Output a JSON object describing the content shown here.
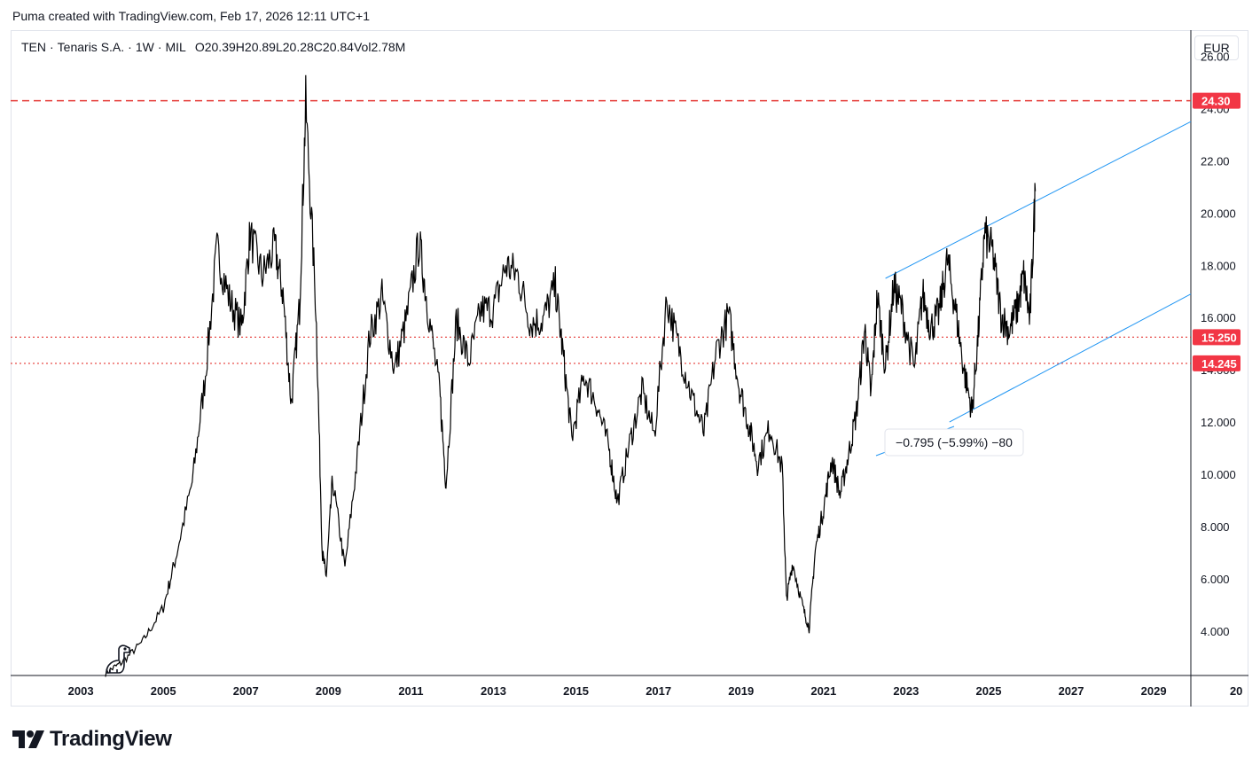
{
  "caption": "Puma created with TradingView.com, Feb 17, 2026 12:11 UTC+1",
  "symbol": {
    "ticker": "TEN",
    "name": "Tenaris S.A.",
    "interval": "1W",
    "exchange": "MIL",
    "open_label": "O",
    "open": "20.39",
    "high_label": "H",
    "high": "20.89",
    "low_label": "L",
    "low": "20.28",
    "close_label": "C",
    "close": "20.84",
    "vol_label": "Vol",
    "vol": "2.78M",
    "separator": "·"
  },
  "currency": "EUR",
  "logo_text": "TradingView",
  "colors": {
    "price_line": "#000000",
    "level_line": "#e53935",
    "trend_line": "#2196f3",
    "axis_text": "#131722",
    "label_bg": "#f23645"
  },
  "chart_data": {
    "type": "line",
    "title": "",
    "xlabel": "",
    "ylabel": "",
    "x_axis_ticks": [
      "2003",
      "2005",
      "2007",
      "2009",
      "2011",
      "2013",
      "2015",
      "2017",
      "2019",
      "2021",
      "2023",
      "2025",
      "2027",
      "2029",
      "20"
    ],
    "y_axis_ticks": [
      "26.00",
      "24.00",
      "22.00",
      "20.000",
      "18.000",
      "16.000",
      "14.000",
      "12.000",
      "10.000",
      "8.000",
      "6.000",
      "4.000"
    ],
    "ylim": [
      2.3,
      27.0
    ],
    "xlim": [
      2001.3,
      2029.9
    ],
    "series": [
      {
        "x": [
          2003.6,
          2004.0,
          2004.5,
          2005.0,
          2005.3,
          2005.7,
          2006.0,
          2006.3,
          2006.6,
          2006.9,
          2007.1,
          2007.4,
          2007.7,
          2007.9,
          2008.1,
          2008.3,
          2008.45,
          2008.7,
          2008.85,
          2008.95,
          2009.1,
          2009.4,
          2009.7,
          2010.0,
          2010.3,
          2010.6,
          2010.9,
          2011.2,
          2011.4,
          2011.7,
          2011.85,
          2012.1,
          2012.4,
          2012.7,
          2013.0,
          2013.3,
          2013.6,
          2013.9,
          2014.2,
          2014.5,
          2014.7,
          2014.9,
          2015.2,
          2015.5,
          2015.8,
          2016.0,
          2016.3,
          2016.6,
          2016.9,
          2017.2,
          2017.5,
          2017.8,
          2018.1,
          2018.4,
          2018.7,
          2018.95,
          2019.2,
          2019.4,
          2019.7,
          2020.0,
          2020.1,
          2020.25,
          2020.5,
          2020.65,
          2020.8,
          2021.0,
          2021.2,
          2021.4,
          2021.6,
          2021.8,
          2022.0,
          2022.15,
          2022.3,
          2022.5,
          2022.7,
          2022.9,
          2023.2,
          2023.4,
          2023.6,
          2023.8,
          2024.0,
          2024.2,
          2024.4,
          2024.6,
          2024.75,
          2024.9,
          2025.1,
          2025.3,
          2025.5,
          2025.7,
          2025.85,
          2026.0,
          2026.13
        ],
        "y": [
          2.4,
          2.8,
          3.6,
          4.9,
          6.8,
          9.7,
          13.5,
          18.6,
          16.7,
          15.6,
          19.2,
          17.6,
          18.7,
          16.9,
          12.7,
          16.4,
          24.2,
          16.3,
          7.0,
          6.1,
          9.8,
          6.4,
          10.6,
          15.3,
          16.8,
          14.0,
          16.0,
          18.9,
          16.5,
          13.1,
          9.6,
          15.9,
          14.3,
          16.3,
          16.3,
          18.0,
          17.6,
          15.8,
          15.9,
          17.2,
          14.4,
          11.4,
          13.8,
          12.7,
          11.0,
          8.9,
          11.2,
          13.2,
          11.5,
          16.7,
          14.8,
          13.0,
          11.6,
          14.7,
          16.1,
          13.4,
          11.8,
          10.4,
          11.8,
          10.2,
          5.2,
          6.6,
          4.9,
          4.1,
          7.1,
          8.7,
          10.6,
          9.2,
          10.7,
          12.4,
          15.6,
          13.0,
          16.8,
          14.1,
          17.2,
          16.3,
          14.0,
          16.9,
          15.6,
          16.2,
          18.2,
          16.3,
          14.0,
          12.4,
          15.4,
          19.2,
          18.5,
          16.1,
          15.5,
          16.4,
          17.6,
          15.9,
          20.84
        ]
      }
    ],
    "horizontal_levels": [
      {
        "label": "24.30",
        "value": 24.3
      },
      {
        "label": "15.250",
        "value": 15.25
      },
      {
        "label": "14.245",
        "value": 14.245
      }
    ],
    "trend_channel": [
      {
        "x": [
          2022.5,
          2029.9
        ],
        "y": [
          17.5,
          23.5
        ]
      },
      {
        "x": [
          2024.05,
          2029.9
        ],
        "y": [
          12.0,
          16.9
        ]
      }
    ],
    "measure_annotation": "−0.795 (−5.99%) −80",
    "grid": false,
    "legend": "none"
  }
}
